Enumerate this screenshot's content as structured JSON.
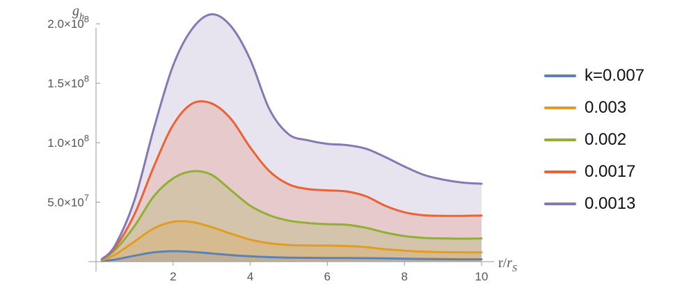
{
  "chart_data": {
    "type": "area",
    "ylabel_base": "g",
    "ylabel_sub": "h",
    "xlabel_base": "r/",
    "xlabel_var": "r",
    "xlabel_sub": "S",
    "xlim": [
      0,
      10
    ],
    "ylim": [
      0,
      220000000
    ],
    "x_ticks": [
      2,
      4,
      6,
      8,
      10
    ],
    "y_ticks": [
      {
        "value": 50000000,
        "mantissa": "5.0",
        "exponent": "7"
      },
      {
        "value": 100000000,
        "mantissa": "1.0",
        "exponent": "8"
      },
      {
        "value": 150000000,
        "mantissa": "1.5",
        "exponent": "8"
      },
      {
        "value": 200000000,
        "mantissa": "2.0",
        "exponent": "8"
      }
    ],
    "grid": false,
    "legend_position": "right",
    "x": [
      0.15,
      0.5,
      1,
      1.5,
      2,
      2.5,
      3,
      3.5,
      4,
      4.5,
      5,
      5.5,
      6,
      6.5,
      7,
      7.5,
      8,
      8.5,
      9,
      9.5,
      10
    ],
    "series": [
      {
        "name": "k=0.007",
        "color": "#5e81b5",
        "values": [
          500000,
          1800000,
          5000000,
          7800000,
          8800000,
          8200000,
          6900000,
          5500000,
          4500000,
          3800000,
          3400000,
          3200000,
          3100000,
          3050000,
          2950000,
          2750000,
          2500000,
          2250000,
          2100000,
          2000000,
          1950000
        ]
      },
      {
        "name": "0.003",
        "color": "#e19c24",
        "values": [
          1000000,
          6000000,
          17000000,
          28000000,
          33500000,
          33300000,
          29000000,
          23500000,
          18500000,
          15500000,
          14000000,
          13600000,
          13500000,
          13200000,
          12200000,
          10500000,
          9200000,
          8400000,
          8000000,
          7800000,
          7800000
        ]
      },
      {
        "name": "0.002",
        "color": "#8fb032",
        "values": [
          1500000,
          10000000,
          30000000,
          55000000,
          70000000,
          76000000,
          73000000,
          60000000,
          47000000,
          39000000,
          34500000,
          32500000,
          31500000,
          31000000,
          28500000,
          24500000,
          21500000,
          20000000,
          19500000,
          19300000,
          19500000
        ]
      },
      {
        "name": "0.0017",
        "color": "#eb6235",
        "values": [
          2000000,
          12000000,
          40000000,
          80000000,
          115000000,
          133000000,
          133000000,
          120000000,
          96000000,
          76000000,
          65000000,
          61000000,
          60000000,
          59000000,
          55000000,
          47000000,
          41500000,
          39000000,
          38500000,
          38500000,
          38800000
        ]
      },
      {
        "name": "0.0013",
        "color": "#8778b3",
        "values": [
          2000000,
          14000000,
          52000000,
          112000000,
          165000000,
          196000000,
          208000000,
          198000000,
          170000000,
          128000000,
          107000000,
          102000000,
          99000000,
          98000000,
          95000000,
          88000000,
          80000000,
          73000000,
          69000000,
          66500000,
          65500000
        ]
      }
    ]
  }
}
